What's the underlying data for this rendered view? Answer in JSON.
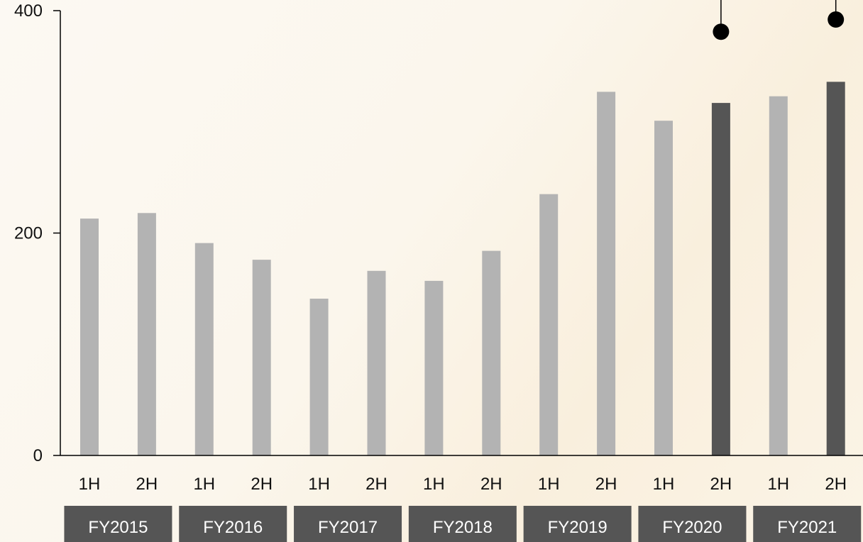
{
  "chart_data": {
    "type": "bar",
    "title": "",
    "xlabel": "",
    "ylabel": "",
    "ylim": [
      0,
      400
    ],
    "yticks": [
      "0",
      "200",
      "400"
    ],
    "categories": [
      "1H",
      "2H",
      "1H",
      "2H",
      "1H",
      "2H",
      "1H",
      "2H",
      "1H",
      "2H",
      "1H",
      "2H",
      "1H",
      "2H"
    ],
    "groups": [
      {
        "label": "FY2015",
        "span": [
          0,
          1
        ]
      },
      {
        "label": "FY2016",
        "span": [
          2,
          3
        ]
      },
      {
        "label": "FY2017",
        "span": [
          4,
          5
        ]
      },
      {
        "label": "FY2018",
        "span": [
          6,
          7
        ]
      },
      {
        "label": "FY2019",
        "span": [
          8,
          9
        ]
      },
      {
        "label": "FY2020",
        "span": [
          10,
          11
        ]
      },
      {
        "label": "FY2021",
        "span": [
          12,
          13
        ]
      }
    ],
    "values": [
      213,
      218,
      191,
      176,
      141,
      166,
      157,
      184,
      235,
      327,
      301,
      317,
      323,
      336
    ],
    "highlighted": [
      11,
      13
    ],
    "markers": [
      {
        "index": 11,
        "value": 381
      },
      {
        "index": 13,
        "value": 392
      }
    ],
    "colors": {
      "bar": "#b3b3b3",
      "bar_highlight": "#555555",
      "marker": "#000000",
      "axis": "#000000",
      "group_box": "#555555",
      "group_text": "#ffffff"
    },
    "grid": false,
    "legend": "none"
  }
}
